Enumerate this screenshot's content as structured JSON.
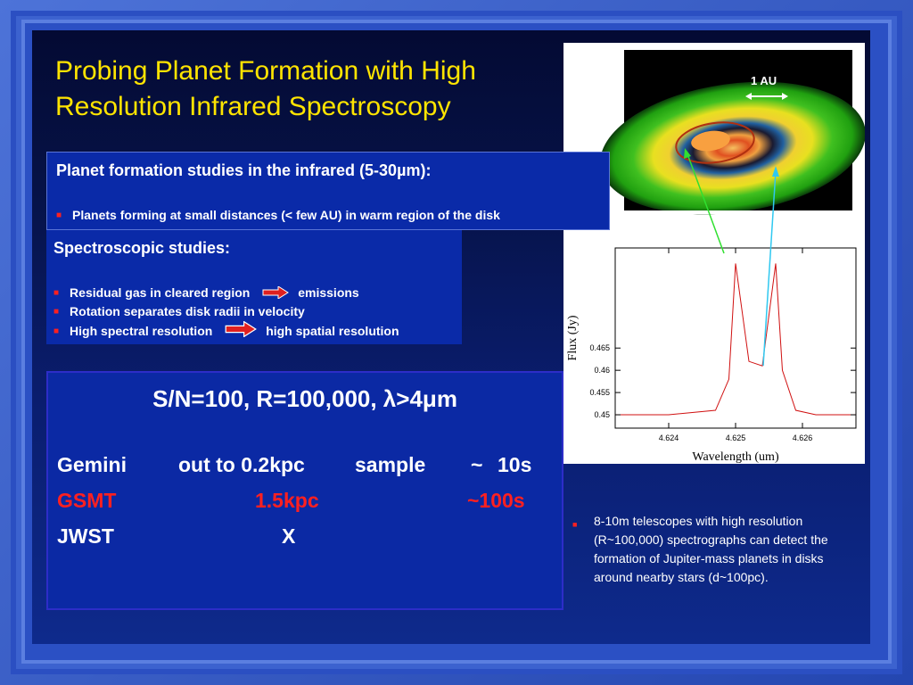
{
  "title": "Probing Planet Formation with High Resolution Infrared Spectroscopy",
  "box1": {
    "heading": "Planet formation studies in the infrared (5-30µm):",
    "bullet": "Planets forming at small distances (< few AU) in warm region of the disk"
  },
  "box2": {
    "heading": "Spectroscopic studies:",
    "items": [
      {
        "pre": "Residual gas in cleared region",
        "post": "emissions"
      },
      {
        "pre": "Rotation separates disk radii in velocity",
        "post": ""
      },
      {
        "pre": "High spectral resolution",
        "post": "high spatial resolution"
      }
    ]
  },
  "box3": {
    "headline": "S/N=100, R=100,000, λ>4μm",
    "rows": [
      {
        "name": "Gemini",
        "dist": "out to 0.2kpc",
        "sample": "sample",
        "tilde": "~",
        "time": "10s"
      },
      {
        "name": "GSMT",
        "dist": "1.5kpc",
        "sample": "",
        "tilde": "",
        "time": "~100s"
      },
      {
        "name": "JWST",
        "dist": "X",
        "sample": "",
        "tilde": "",
        "time": ""
      }
    ]
  },
  "disk_image": {
    "scale_label": "1 AU"
  },
  "note": "8-10m telescopes with high resolution (R~100,000) spectrographs can detect the formation of Jupiter-mass planets in disks around nearby stars (d~100pc).",
  "chart_data": {
    "type": "line",
    "xlabel": "Wavelength (um)",
    "ylabel": "Flux (Jy)",
    "xlim": [
      4.6232,
      4.6268
    ],
    "ylim": [
      0.447,
      0.4875
    ],
    "xticks": [
      "4.624",
      "4.625",
      "4.626"
    ],
    "yticks": [
      "0.45",
      "0.455",
      "0.46",
      "0.465"
    ],
    "series": [
      {
        "style": "step",
        "color": "#000000",
        "x": [
          4.6232,
          4.6234,
          4.6236,
          4.6238,
          4.624,
          4.6242,
          4.6244,
          4.6246,
          4.6248,
          4.625,
          4.6252,
          4.6254,
          4.6256,
          4.6258,
          4.626,
          4.6262,
          4.6264,
          4.6266,
          4.6268
        ],
        "y": [
          0.451,
          0.449,
          0.452,
          0.45,
          0.448,
          0.451,
          0.45,
          0.452,
          0.455,
          0.485,
          0.462,
          0.46,
          0.484,
          0.453,
          0.45,
          0.451,
          0.449,
          0.451,
          0.45
        ]
      },
      {
        "style": "line",
        "color": "#d01010",
        "x": [
          4.6232,
          4.624,
          4.6247,
          4.6249,
          4.625,
          4.6252,
          4.6254,
          4.6256,
          4.6257,
          4.6259,
          4.6262,
          4.6268
        ],
        "y": [
          0.45,
          0.45,
          0.451,
          0.458,
          0.484,
          0.462,
          0.461,
          0.484,
          0.46,
          0.451,
          0.45,
          0.45
        ]
      }
    ]
  }
}
